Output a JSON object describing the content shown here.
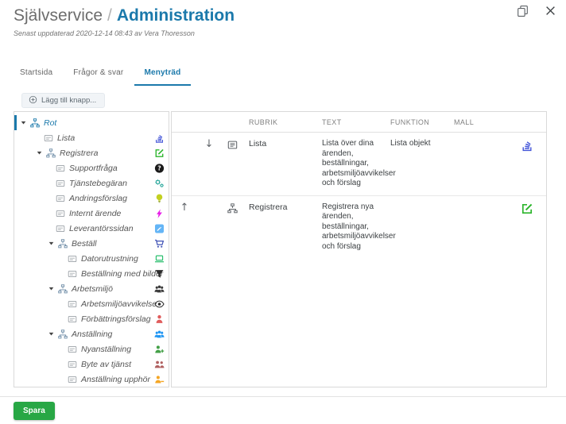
{
  "window": {
    "title_breadcrumb": "Självservice",
    "separator": "/",
    "title": "Administration"
  },
  "header": {
    "subtitle": "Senast uppdaterad 2020-12-14 08:43 av Vera Thoresson"
  },
  "tabs": [
    {
      "label": "Startsida",
      "active": false
    },
    {
      "label": "Frågor & svar",
      "active": false
    },
    {
      "label": "Menyträd",
      "active": true
    }
  ],
  "toolbar": {
    "add_button": "Lägg till knapp..."
  },
  "tree": {
    "items": [
      {
        "label": "Rot",
        "level": 0,
        "expandable": true,
        "selected": true,
        "node_icon": "branch-icon"
      },
      {
        "label": "Lista",
        "level": 1,
        "expandable": false,
        "node_icon": "card-icon",
        "action_icon": {
          "name": "list-stack-icon",
          "color": "#4254d8"
        }
      },
      {
        "label": "Registrera",
        "level": 1,
        "expandable": true,
        "node_icon": "branch-icon",
        "action_icon": {
          "name": "edit-icon",
          "color": "#2db52d"
        }
      },
      {
        "label": "Supportfråga",
        "level": 2,
        "expandable": false,
        "node_icon": "card-icon",
        "action_icon": {
          "name": "question-circle-icon",
          "color": "#1a1a1a"
        }
      },
      {
        "label": "Tjänstebegäran",
        "level": 2,
        "expandable": false,
        "node_icon": "card-icon",
        "action_icon": {
          "name": "cogs-icon",
          "color": "#26a69a"
        }
      },
      {
        "label": "Andringsförslag",
        "level": 2,
        "expandable": false,
        "node_icon": "card-icon",
        "action_icon": {
          "name": "lightbulb-icon",
          "color": "#c3d021"
        }
      },
      {
        "label": "Internt ärende",
        "level": 2,
        "expandable": false,
        "node_icon": "card-icon",
        "action_icon": {
          "name": "bolt-icon",
          "color": "#e81ee8"
        }
      },
      {
        "label": "Leverantörssidan",
        "level": 2,
        "expandable": false,
        "node_icon": "card-icon",
        "action_icon": {
          "name": "supplier-icon",
          "color": "#64b5f6"
        }
      },
      {
        "label": "Beställ",
        "level": 2,
        "expandable": true,
        "node_icon": "branch-icon",
        "action_icon": {
          "name": "cart-icon",
          "color": "#3f51b5"
        }
      },
      {
        "label": "Datorutrustning",
        "level": 3,
        "expandable": false,
        "node_icon": "card-icon",
        "action_icon": {
          "name": "laptop-icon",
          "color": "#2abf6e"
        }
      },
      {
        "label": "Beställning med bilder",
        "level": 3,
        "expandable": false,
        "node_icon": "card-icon",
        "action_icon": {
          "name": "filter-icon",
          "color": "#2b2b2b"
        }
      },
      {
        "label": "Arbetsmiljö",
        "level": 2,
        "expandable": true,
        "node_icon": "branch-icon",
        "action_icon": {
          "name": "users-icon",
          "color": "#3a3a3a"
        }
      },
      {
        "label": "Arbetsmiljöavvikelse",
        "level": 3,
        "expandable": false,
        "node_icon": "card-icon",
        "action_icon": {
          "name": "eye-icon",
          "color": "#2b2b2b"
        }
      },
      {
        "label": "Förbättringsförslag",
        "level": 3,
        "expandable": false,
        "node_icon": "card-icon",
        "action_icon": {
          "name": "person-icon",
          "color": "#e05c5c"
        }
      },
      {
        "label": "Anställning",
        "level": 2,
        "expandable": true,
        "node_icon": "branch-icon",
        "action_icon": {
          "name": "users-icon",
          "color": "#2196f3"
        }
      },
      {
        "label": "Nyanställning",
        "level": 3,
        "expandable": false,
        "node_icon": "card-icon",
        "action_icon": {
          "name": "person-plus-icon",
          "color": "#43a047"
        }
      },
      {
        "label": "Byte av tjänst",
        "level": 3,
        "expandable": false,
        "node_icon": "card-icon",
        "action_icon": {
          "name": "persons-two-icon",
          "color": "#b06060"
        }
      },
      {
        "label": "Anställning upphör",
        "level": 3,
        "expandable": false,
        "node_icon": "card-icon",
        "action_icon": {
          "name": "person-minus-icon",
          "color": "#f5a623"
        }
      }
    ]
  },
  "table": {
    "headers": [
      "RUBRIK",
      "TEXT",
      "FUNKTION",
      "MALL"
    ],
    "rows": [
      {
        "move": "down",
        "node_icon": "list-alt-icon",
        "rubrik": "Lista",
        "text": "Lista över dina ärenden, beställningar, arbetsmiljöavvikelser och förslag",
        "funktion": "Lista objekt",
        "mall": "",
        "action_icon": {
          "name": "list-stack-icon",
          "color": "#4254d8"
        }
      },
      {
        "move": "up",
        "node_icon": "branch-icon",
        "rubrik": "Registrera",
        "text": "Registrera nya ärenden, beställningar, arbetsmiljöavvikelser och förslag",
        "funktion": "",
        "mall": "",
        "action_icon": {
          "name": "edit-icon",
          "color": "#2db52d"
        }
      }
    ]
  },
  "footer": {
    "save_button": "Spara"
  },
  "colors": {
    "accent_blue": "#1b79ab",
    "save_green": "#28a745",
    "tree_branch": "#6b8aa5",
    "tree_card": "#9aa0a6",
    "muted_icon": "#5f6368"
  }
}
